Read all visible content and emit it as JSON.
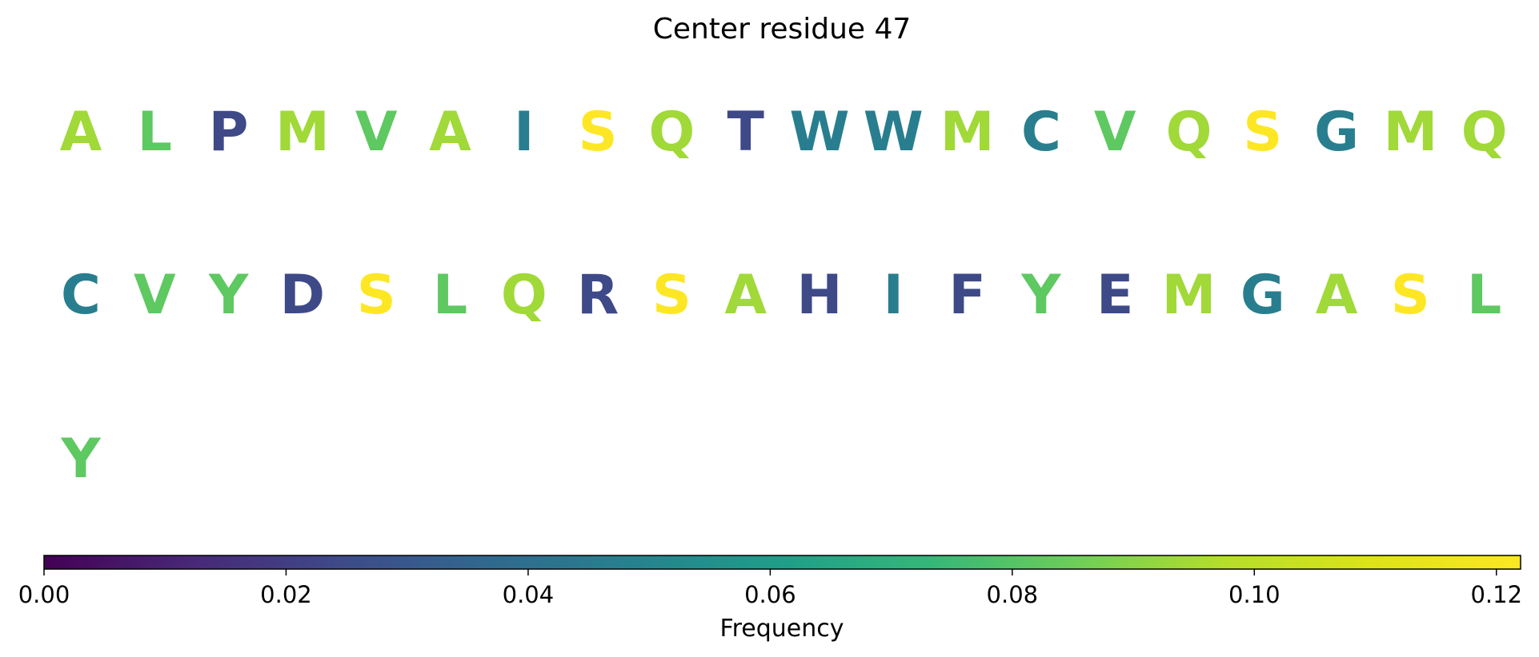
{
  "chart_data": {
    "type": "heatmap",
    "title": "Center residue 47",
    "residues": [
      {
        "letter": "A",
        "value": 0.094
      },
      {
        "letter": "L",
        "value": 0.082
      },
      {
        "letter": "P",
        "value": 0.024
      },
      {
        "letter": "M",
        "value": 0.094
      },
      {
        "letter": "V",
        "value": 0.082
      },
      {
        "letter": "A",
        "value": 0.094
      },
      {
        "letter": "I",
        "value": 0.047
      },
      {
        "letter": "S",
        "value": 0.122
      },
      {
        "letter": "Q",
        "value": 0.094
      },
      {
        "letter": "T",
        "value": 0.024
      },
      {
        "letter": "W",
        "value": 0.047
      },
      {
        "letter": "W",
        "value": 0.047
      },
      {
        "letter": "M",
        "value": 0.094
      },
      {
        "letter": "C",
        "value": 0.047
      },
      {
        "letter": "V",
        "value": 0.082
      },
      {
        "letter": "Q",
        "value": 0.094
      },
      {
        "letter": "S",
        "value": 0.122
      },
      {
        "letter": "G",
        "value": 0.047
      },
      {
        "letter": "M",
        "value": 0.094
      },
      {
        "letter": "Q",
        "value": 0.094
      },
      {
        "letter": "C",
        "value": 0.047
      },
      {
        "letter": "V",
        "value": 0.082
      },
      {
        "letter": "Y",
        "value": 0.082
      },
      {
        "letter": "D",
        "value": 0.024
      },
      {
        "letter": "S",
        "value": 0.122
      },
      {
        "letter": "L",
        "value": 0.082
      },
      {
        "letter": "Q",
        "value": 0.094
      },
      {
        "letter": "R",
        "value": 0.024
      },
      {
        "letter": "S",
        "value": 0.122
      },
      {
        "letter": "A",
        "value": 0.094
      },
      {
        "letter": "H",
        "value": 0.024
      },
      {
        "letter": "I",
        "value": 0.047
      },
      {
        "letter": "F",
        "value": 0.024
      },
      {
        "letter": "Y",
        "value": 0.082
      },
      {
        "letter": "E",
        "value": 0.024
      },
      {
        "letter": "M",
        "value": 0.094
      },
      {
        "letter": "G",
        "value": 0.047
      },
      {
        "letter": "A",
        "value": 0.094
      },
      {
        "letter": "S",
        "value": 0.122
      },
      {
        "letter": "L",
        "value": 0.082
      },
      {
        "letter": "Y",
        "value": 0.082
      }
    ],
    "letters_per_row": 20,
    "colorbar": {
      "label": "Frequency",
      "colormap": "viridis",
      "range": [
        0.0,
        0.122
      ],
      "ticks": [
        0.0,
        0.02,
        0.04,
        0.06,
        0.08,
        0.1,
        0.12
      ],
      "tick_labels": [
        "0.00",
        "0.02",
        "0.04",
        "0.06",
        "0.08",
        "0.10",
        "0.12"
      ],
      "orientation": "horizontal",
      "placement": "bottom"
    },
    "axes_visible": false
  }
}
